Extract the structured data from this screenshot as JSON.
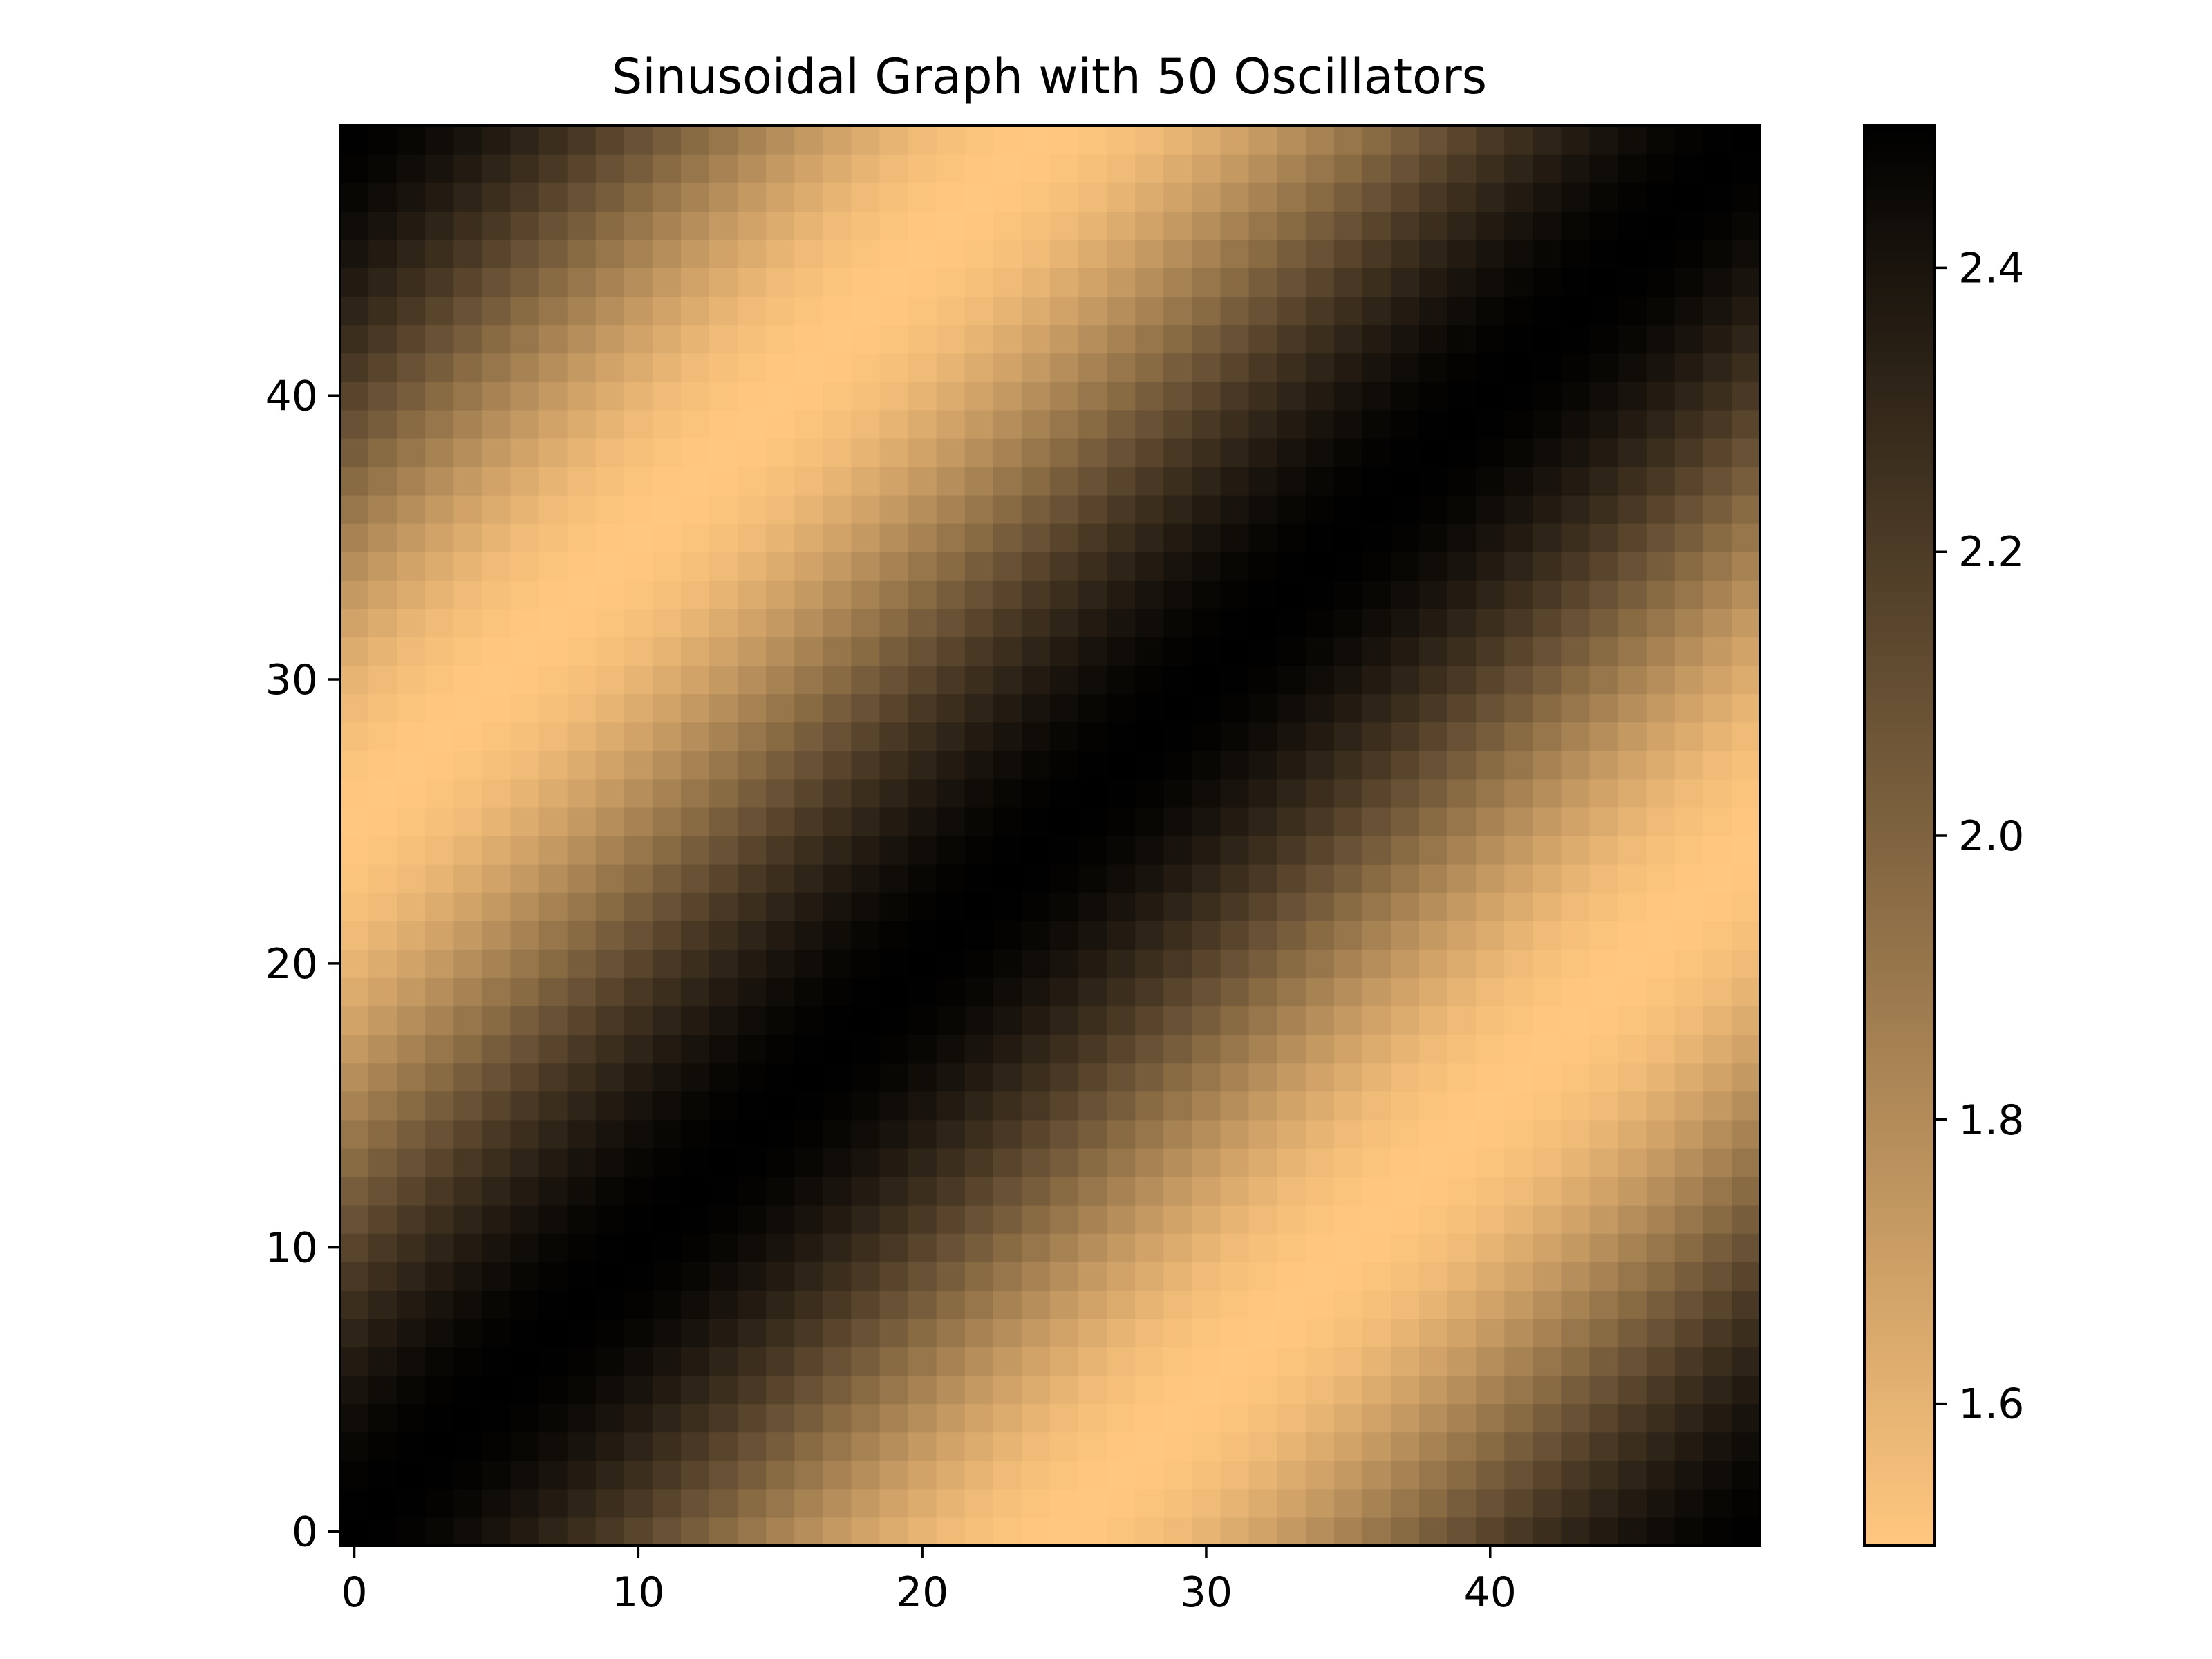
{
  "chart_data": {
    "type": "heatmap",
    "title": "Sinusoidal Graph with 50 Oscillators",
    "xlabel": "",
    "ylabel": "",
    "rows": 50,
    "cols": 50,
    "xlim": [
      -0.5,
      49.5
    ],
    "ylim": [
      -0.5,
      49.5
    ],
    "x_ticks": [
      0,
      10,
      20,
      30,
      40
    ],
    "y_ticks": [
      0,
      10,
      20,
      30,
      40
    ],
    "value_model": "value(x, y) = 2 + 0.5 * cos(2 * pi * (x - y) / 50), x = column index, y = row index (origin lower-left)",
    "colorbar": {
      "range": [
        1.5,
        2.5
      ],
      "ticks": [
        "1.6",
        "1.8",
        "2.0",
        "2.2",
        "2.4"
      ],
      "tick_values": [
        1.6,
        1.8,
        2.0,
        2.2,
        2.4
      ],
      "colormap": "copper_r",
      "low_color": "#ffc77f",
      "high_color": "#000000"
    },
    "grid": false,
    "legend": "none"
  }
}
